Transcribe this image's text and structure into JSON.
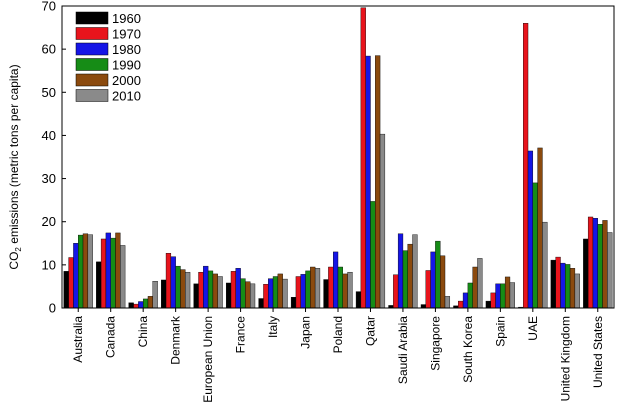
{
  "chart_data": {
    "type": "bar",
    "ylabel_main": "CO",
    "ylabel_sub": "2",
    "ylabel_rest": " emissions (metric tons per capita)",
    "ylim": [
      0,
      70
    ],
    "yticks": [
      "0",
      "10",
      "20",
      "30",
      "40",
      "50",
      "60",
      "70"
    ],
    "grid": false,
    "legend_position": "top-left",
    "categories": [
      "Australia",
      "Canada",
      "China",
      "Denmark",
      "European Union",
      "France",
      "Italy",
      "Japan",
      "Poland",
      "Qatar",
      "Saudi Arabia",
      "Singapore",
      "South Korea",
      "Spain",
      "UAE",
      "United Kingdom",
      "United States"
    ],
    "series": [
      {
        "name": "1960",
        "color": "#000000",
        "values": [
          8.5,
          10.7,
          1.2,
          6.5,
          5.6,
          5.8,
          2.2,
          2.5,
          6.6,
          3.8,
          0.6,
          0.8,
          0.5,
          1.6,
          0.2,
          11.1,
          16.0
        ]
      },
      {
        "name": "1970",
        "color": "#e8141c",
        "values": [
          11.7,
          16.0,
          0.9,
          12.7,
          8.3,
          8.5,
          5.5,
          7.3,
          9.5,
          69.6,
          7.7,
          8.7,
          1.6,
          3.5,
          66.0,
          11.8,
          21.1
        ]
      },
      {
        "name": "1980",
        "color": "#1515e6",
        "values": [
          15.0,
          17.4,
          1.5,
          11.9,
          9.7,
          9.2,
          6.8,
          7.8,
          13.0,
          58.4,
          17.2,
          13.0,
          3.5,
          5.6,
          36.4,
          10.4,
          20.8
        ]
      },
      {
        "name": "1990",
        "color": "#168c16",
        "values": [
          16.9,
          16.2,
          2.1,
          9.7,
          8.6,
          6.8,
          7.3,
          8.6,
          9.5,
          24.7,
          13.3,
          15.5,
          5.8,
          5.6,
          29.0,
          10.1,
          19.4
        ]
      },
      {
        "name": "2000",
        "color": "#8b4a0e",
        "values": [
          17.2,
          17.4,
          2.7,
          8.9,
          7.9,
          6.1,
          7.9,
          9.5,
          7.9,
          58.5,
          14.8,
          12.1,
          9.5,
          7.2,
          37.1,
          9.2,
          20.3
        ]
      },
      {
        "name": "2010",
        "color": "#8a8a8a",
        "values": [
          17.0,
          14.5,
          6.2,
          8.3,
          7.3,
          5.6,
          6.7,
          9.2,
          8.3,
          40.3,
          17.0,
          2.7,
          11.5,
          5.9,
          19.9,
          7.9,
          17.5
        ]
      }
    ]
  }
}
